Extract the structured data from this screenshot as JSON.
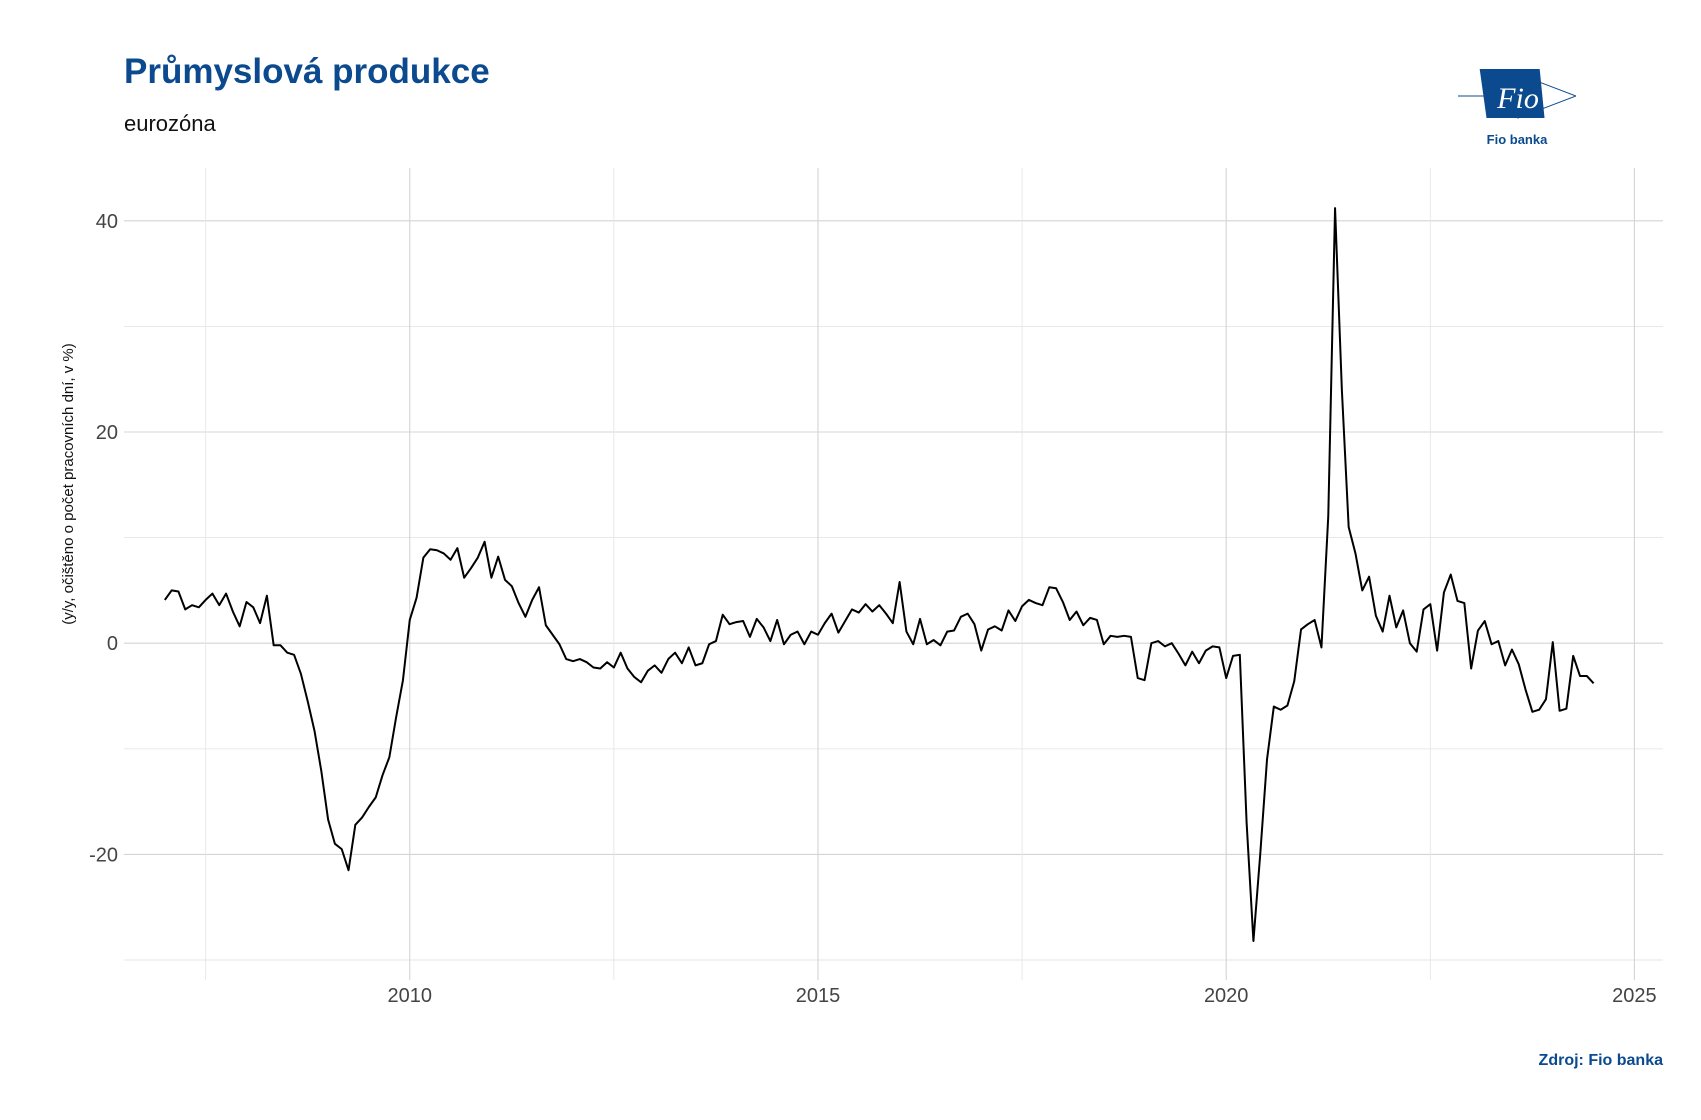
{
  "header": {
    "title": "Průmyslová produkce",
    "subtitle": "eurozóna"
  },
  "logo": {
    "text": "Fio",
    "caption": "Fio banka",
    "color": "#0b4a8f"
  },
  "footer": {
    "source": "Zdroj: Fio banka"
  },
  "chart_data": {
    "type": "line",
    "title": "Průmyslová produkce",
    "subtitle": "eurozóna",
    "xlabel": "",
    "ylabel": "(y/y, očištěno o počet pracovních dní, v %)",
    "xlim": [
      2006.5,
      2025.35
    ],
    "ylim": [
      -30,
      45
    ],
    "x_ticks": [
      2010,
      2015,
      2020,
      2025
    ],
    "y_ticks": [
      -20,
      0,
      20,
      40
    ],
    "grid": true,
    "line_color": "#000000",
    "series": [
      {
        "start": "2007-01",
        "frequency": "monthly",
        "values": [
          4.1,
          5.0,
          4.9,
          3.2,
          3.6,
          3.4,
          4.1,
          4.7,
          3.6,
          4.7,
          3.0,
          1.6,
          3.9,
          3.4,
          1.9,
          4.5,
          -0.2,
          -0.2,
          -0.9,
          -1.1,
          -2.9,
          -5.5,
          -8.3,
          -12.1,
          -16.7,
          -19.0,
          -19.5,
          -21.5,
          -17.2,
          -16.5,
          -15.5,
          -14.6,
          -12.5,
          -10.8,
          -7.0,
          -3.5,
          2.2,
          4.3,
          8.1,
          8.9,
          8.8,
          8.5,
          7.9,
          9.0,
          6.2,
          7.1,
          8.1,
          9.6,
          6.2,
          8.2,
          6.0,
          5.4,
          3.8,
          2.5,
          4.1,
          5.3,
          1.7,
          0.8,
          -0.1,
          -1.5,
          -1.7,
          -1.5,
          -1.8,
          -2.3,
          -2.4,
          -1.8,
          -2.3,
          -0.9,
          -2.4,
          -3.2,
          -3.7,
          -2.6,
          -2.1,
          -2.8,
          -1.5,
          -0.9,
          -1.9,
          -0.4,
          -2.1,
          -1.9,
          -0.1,
          0.2,
          2.7,
          1.8,
          2.0,
          2.1,
          0.6,
          2.3,
          1.5,
          0.2,
          2.2,
          -0.1,
          0.8,
          1.1,
          -0.1,
          1.1,
          0.8,
          1.9,
          2.8,
          1.0,
          2.1,
          3.2,
          2.9,
          3.7,
          3.0,
          3.6,
          2.8,
          1.9,
          5.8,
          1.1,
          -0.1,
          2.3,
          -0.1,
          0.3,
          -0.2,
          1.1,
          1.2,
          2.5,
          2.8,
          1.8,
          -0.7,
          1.3,
          1.6,
          1.2,
          3.1,
          2.1,
          3.5,
          4.1,
          3.8,
          3.6,
          5.3,
          5.2,
          3.9,
          2.2,
          3.0,
          1.7,
          2.4,
          2.2,
          -0.1,
          0.7,
          0.6,
          0.7,
          0.6,
          -3.3,
          -3.5,
          0.0,
          0.2,
          -0.3,
          0.0,
          -1.0,
          -2.1,
          -0.8,
          -1.9,
          -0.7,
          -0.3,
          -0.4,
          -3.3,
          -1.2,
          -1.1,
          -17.0,
          -28.2,
          -20.0,
          -11.0,
          -6.0,
          -6.3,
          -5.9,
          -3.6,
          1.3,
          1.8,
          2.2,
          -0.4,
          12.0,
          41.2,
          24.0,
          11.0,
          8.5,
          5.0,
          6.3,
          2.6,
          1.1,
          4.5,
          1.5,
          3.1,
          0.0,
          -0.8,
          3.2,
          3.7,
          -0.7,
          4.8,
          6.5,
          4.0,
          3.8,
          -2.4,
          1.2,
          2.1,
          -0.1,
          0.2,
          -2.1,
          -0.6,
          -2.0,
          -4.4,
          -6.5,
          -6.3,
          -5.3,
          0.1,
          -6.4,
          -6.2,
          -1.2,
          -3.1,
          -3.1,
          -3.8
        ]
      }
    ]
  }
}
